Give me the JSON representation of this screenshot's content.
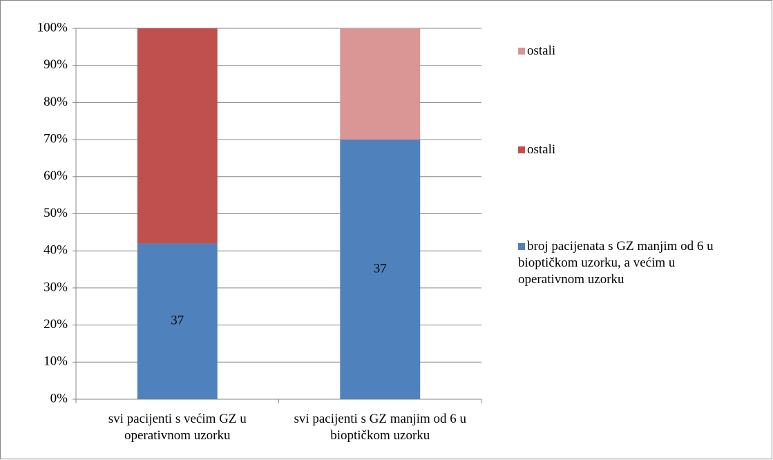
{
  "chart_data": {
    "type": "stacked_bar",
    "categories": [
      "svi pacijenti s većim GZ u operativnom uzorku",
      "svi pacijenti s GZ manjim od 6 u bioptičkom uzorku"
    ],
    "series": [
      {
        "name": "broj pacijenata s GZ manjim od 6 u bioptičkom uzorku, a većim u operativnom uzorku",
        "color": "#4f81bd",
        "values": [
          42,
          70
        ],
        "data_labels": [
          "37",
          "37"
        ]
      },
      {
        "name": "ostali",
        "color": "#c0504d",
        "values": [
          58,
          null
        ]
      },
      {
        "name": "ostali",
        "color": "#d99694",
        "values": [
          null,
          30
        ]
      }
    ],
    "ylim": [
      0,
      100
    ],
    "yticks": [
      {
        "value": 0,
        "label": "0%"
      },
      {
        "value": 10,
        "label": "10%"
      },
      {
        "value": 20,
        "label": "20%"
      },
      {
        "value": 30,
        "label": "30%"
      },
      {
        "value": 40,
        "label": "40%"
      },
      {
        "value": 50,
        "label": "50%"
      },
      {
        "value": 60,
        "label": "60%"
      },
      {
        "value": 70,
        "label": "70%"
      },
      {
        "value": 80,
        "label": "80%"
      },
      {
        "value": 90,
        "label": "90%"
      },
      {
        "value": 100,
        "label": "100%"
      }
    ],
    "grid": true,
    "legend": "right"
  }
}
